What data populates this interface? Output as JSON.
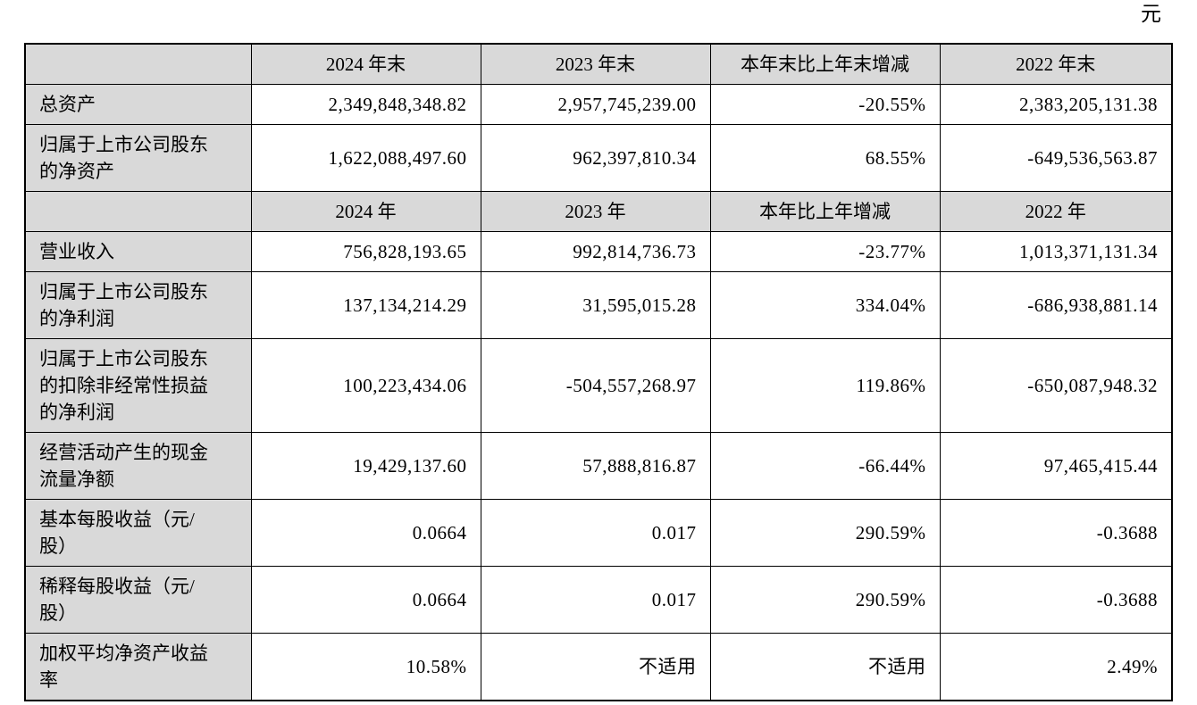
{
  "page": {
    "unit_label": "元"
  },
  "table": {
    "sections": [
      {
        "header": [
          "",
          "2024 年末",
          "2023 年末",
          "本年末比上年末增减",
          "2022 年末"
        ],
        "rows": [
          {
            "label": "总资产",
            "values": [
              "2,349,848,348.82",
              "2,957,745,239.00",
              "-20.55%",
              "2,383,205,131.38"
            ]
          },
          {
            "label": "归属于上市公司股东的净资产",
            "values": [
              "1,622,088,497.60",
              "962,397,810.34",
              "68.55%",
              "-649,536,563.87"
            ]
          }
        ]
      },
      {
        "header": [
          "",
          "2024 年",
          "2023 年",
          "本年比上年增减",
          "2022 年"
        ],
        "rows": [
          {
            "label": "营业收入",
            "values": [
              "756,828,193.65",
              "992,814,736.73",
              "-23.77%",
              "1,013,371,131.34"
            ]
          },
          {
            "label": "归属于上市公司股东的净利润",
            "values": [
              "137,134,214.29",
              "31,595,015.28",
              "334.04%",
              "-686,938,881.14"
            ]
          },
          {
            "label": "归属于上市公司股东的扣除非经常性损益的净利润",
            "values": [
              "100,223,434.06",
              "-504,557,268.97",
              "119.86%",
              "-650,087,948.32"
            ]
          },
          {
            "label": "经营活动产生的现金流量净额",
            "values": [
              "19,429,137.60",
              "57,888,816.87",
              "-66.44%",
              "97,465,415.44"
            ]
          },
          {
            "label": "基本每股收益（元/股）",
            "values": [
              "0.0664",
              "0.017",
              "290.59%",
              "-0.3688"
            ]
          },
          {
            "label": "稀释每股收益（元/股）",
            "values": [
              "0.0664",
              "0.017",
              "290.59%",
              "-0.3688"
            ]
          },
          {
            "label": "加权平均净资产收益率",
            "values": [
              "10.58%",
              "不适用",
              "不适用",
              "2.49%"
            ]
          }
        ]
      }
    ]
  }
}
